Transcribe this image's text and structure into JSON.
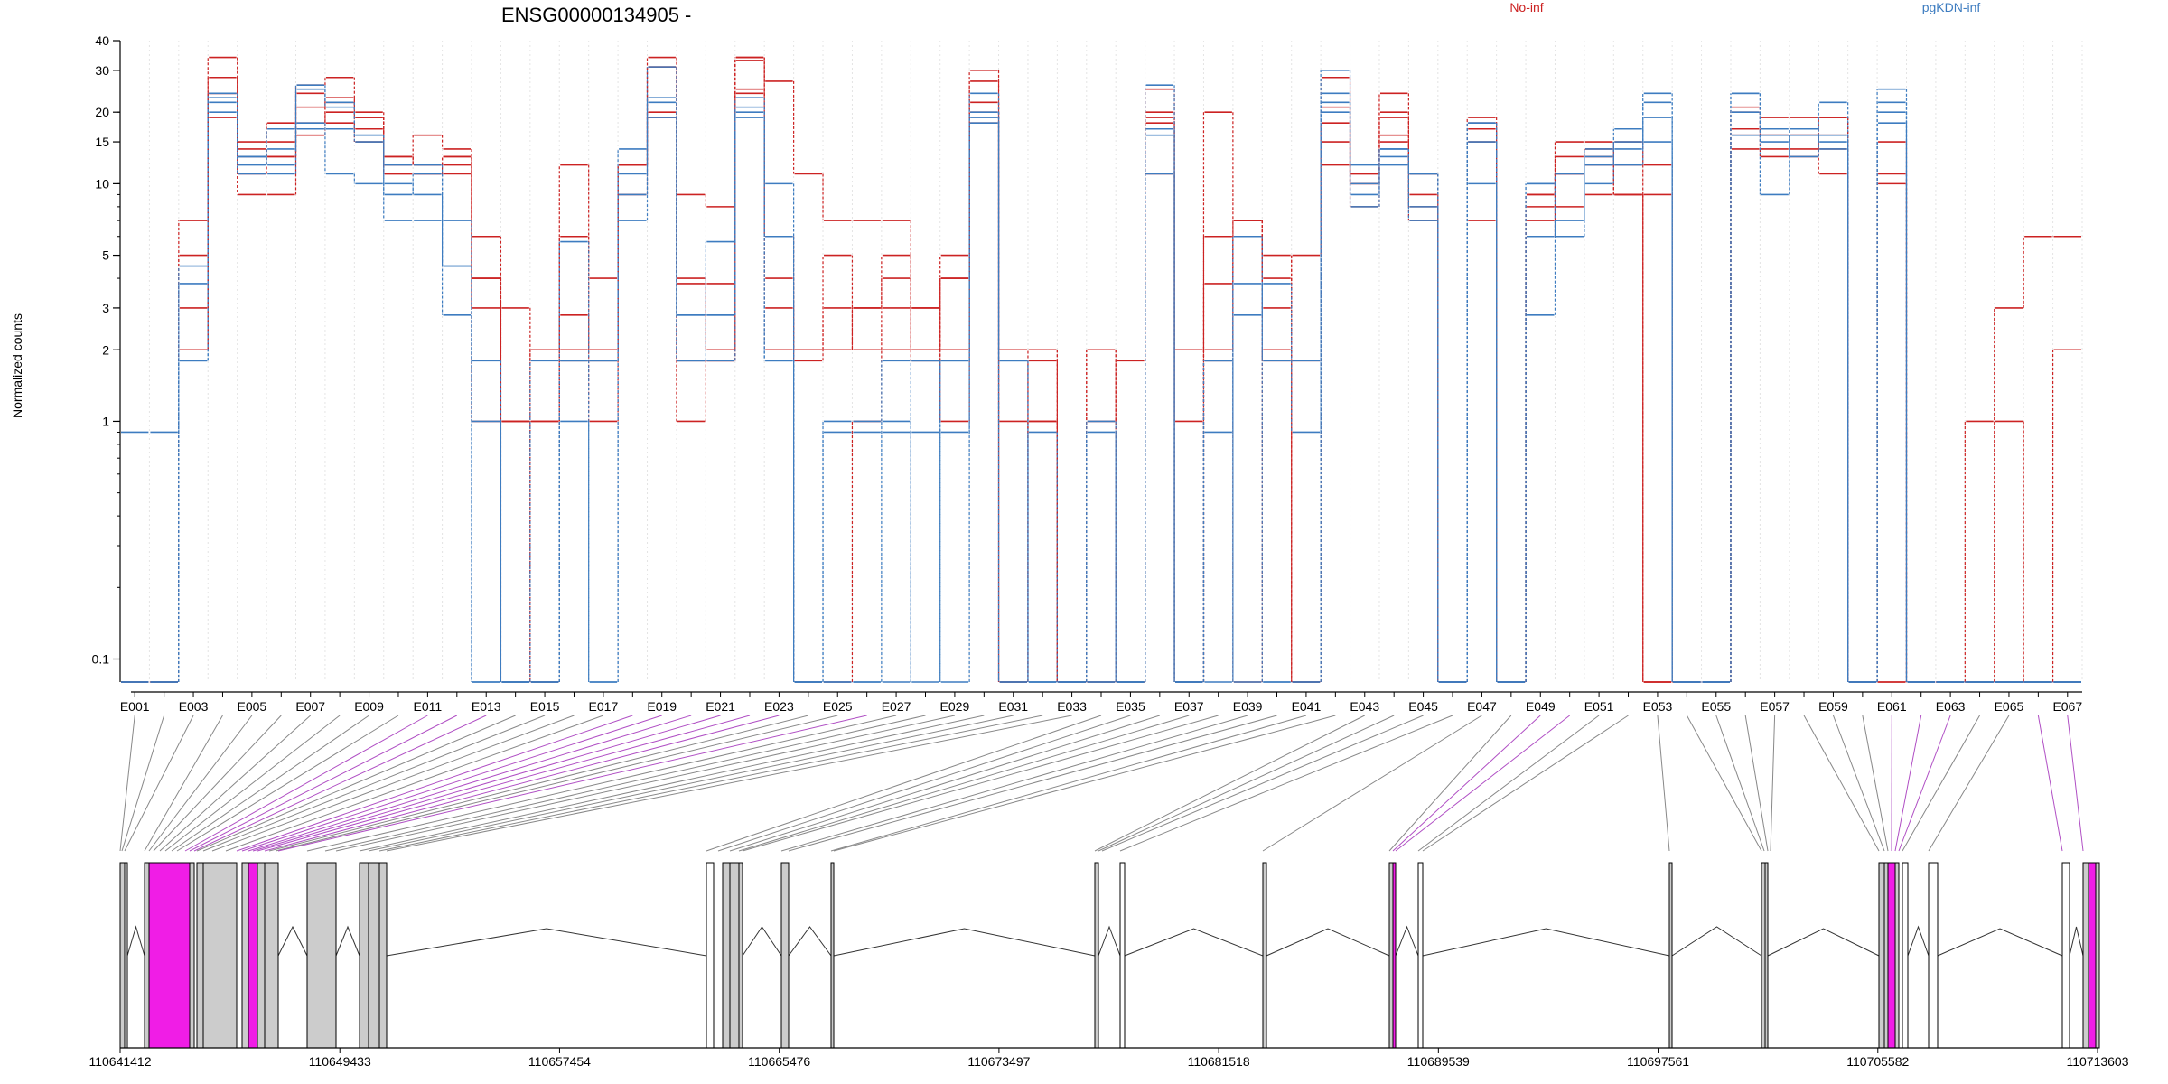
{
  "chart_data": {
    "type": "line",
    "title": "ENSG00000134905 -",
    "ylabel": "Normalized counts",
    "yscale": "log",
    "ylim": [
      0.08,
      40
    ],
    "y_ticks": [
      0.1,
      1,
      2,
      3,
      5,
      10,
      15,
      20,
      30,
      40
    ],
    "grid": "vertical dotted, one per exon",
    "legend": [
      {
        "name": "No-inf",
        "color": "#cc2222"
      },
      {
        "name": "pgKDN-inf",
        "color": "#3d7cc0"
      }
    ],
    "x_tick_labels": [
      "E001",
      "E003",
      "E005",
      "E007",
      "E009",
      "E011",
      "E013",
      "E015",
      "E017",
      "E019",
      "E021",
      "E023",
      "E025",
      "E027",
      "E029",
      "E031",
      "E033",
      "E035",
      "E037",
      "E039",
      "E041",
      "E043",
      "E045",
      "E047",
      "E049",
      "E051",
      "E053",
      "E055",
      "E057",
      "E059",
      "E061",
      "E063",
      "E065",
      "E067"
    ],
    "exon_count": 67,
    "zero_floor": 0.08,
    "series": [
      {
        "name": "No-inf",
        "color": "#cc2222",
        "values": [
          0.08,
          0.08,
          5,
          19,
          9,
          9,
          16,
          20,
          15,
          11,
          11,
          11,
          3,
          1,
          0.08,
          1.8,
          1.8,
          9,
          20,
          1.8,
          1.8,
          25,
          4,
          0.08,
          0.08,
          1,
          2,
          1.8,
          4,
          20,
          0.08,
          1.8,
          0.08,
          0.08,
          0.08,
          11,
          0.08,
          1.8,
          7,
          5,
          0.08,
          12,
          10,
          19,
          11,
          0.08,
          7,
          0.08,
          7,
          11,
          14,
          12,
          0.08,
          0.08,
          0.08,
          17,
          16,
          16,
          11,
          0.08,
          0.08,
          0.08,
          0.08,
          0.08,
          0.08,
          0.08,
          0.08
        ]
      },
      {
        "name": "No-inf",
        "color": "#cc2222",
        "values": [
          0.08,
          0.08,
          3,
          24,
          11,
          13,
          18,
          22,
          19,
          13,
          12,
          13,
          4,
          1,
          1,
          2,
          2,
          12,
          31,
          3.8,
          3.8,
          33,
          6,
          2,
          3,
          3,
          4,
          3,
          4,
          30,
          2,
          2,
          0.08,
          1,
          1.8,
          18,
          1,
          3.8,
          6,
          4,
          1.8,
          15,
          8,
          15,
          7,
          0.08,
          15,
          0.08,
          8,
          13,
          13,
          15,
          12,
          0.08,
          0.08,
          14,
          13,
          13,
          14,
          0.08,
          0.08,
          0.08,
          0.08,
          0.08,
          0.08,
          0.08,
          0.08
        ]
      },
      {
        "name": "No-inf",
        "color": "#cc2222",
        "values": [
          0.08,
          0.08,
          2,
          34,
          13,
          18,
          21,
          23,
          20,
          13,
          12,
          12,
          6,
          3,
          0.08,
          2.8,
          1,
          12,
          34,
          1,
          1.8,
          34,
          3,
          1.8,
          2,
          3,
          3,
          2,
          5,
          27,
          1,
          2,
          0.08,
          2,
          0.08,
          19,
          0.08,
          2,
          7,
          1.8,
          0.08,
          21,
          10,
          16,
          9,
          0.08,
          17,
          0.08,
          6,
          8,
          9,
          9,
          9,
          0.08,
          0.08,
          20,
          14,
          14,
          19,
          0.08,
          15,
          0.08,
          0.08,
          0.08,
          0.08,
          0.08,
          0.08
        ]
      },
      {
        "name": "No-inf",
        "color": "#cc2222",
        "values": [
          0.08,
          0.08,
          7,
          28,
          14,
          13,
          26,
          28,
          19,
          12,
          16,
          14,
          1,
          1,
          1,
          6,
          2,
          12,
          31,
          4,
          2,
          24,
          2,
          2,
          5,
          2,
          5,
          2,
          1,
          18,
          0.08,
          1,
          0.08,
          0.08,
          0.08,
          25,
          0.08,
          6,
          0.08,
          2,
          0.08,
          28,
          11,
          20,
          8,
          0.08,
          19,
          0.08,
          9,
          11,
          12,
          9,
          0.08,
          0.08,
          0.08,
          16,
          16,
          16,
          16,
          0.08,
          11,
          0.08,
          0.08,
          0.08,
          3,
          6,
          6
        ]
      },
      {
        "name": "No-inf",
        "color": "#cc2222",
        "values": [
          0.08,
          0.08,
          2,
          24,
          15,
          15,
          24,
          18,
          17,
          11,
          11,
          13,
          4,
          0.08,
          2,
          12,
          4,
          12,
          19,
          9,
          8,
          34,
          27,
          11,
          7,
          7,
          7,
          3,
          2,
          22,
          0.08,
          1,
          0.08,
          2,
          0.08,
          20,
          2,
          20,
          7,
          3,
          5,
          18,
          11,
          24,
          11,
          0.08,
          18,
          0.08,
          9,
          15,
          15,
          9,
          0.08,
          0.08,
          0.08,
          21,
          19,
          19,
          19,
          0.08,
          10,
          0.08,
          0.08,
          1,
          1,
          0.08,
          2
        ]
      },
      {
        "name": "pgKDN-inf",
        "color": "#3d7cc0",
        "values": [
          0.9,
          0.9,
          3.8,
          24,
          13,
          12,
          17,
          17,
          16,
          10,
          9,
          4.5,
          0.08,
          0.08,
          0.08,
          1.8,
          0.08,
          11,
          23,
          1.8,
          1.8,
          23,
          1.8,
          0.08,
          0.08,
          0.08,
          0.08,
          1.8,
          0.08,
          18,
          0.08,
          0.08,
          0.08,
          1,
          0.08,
          17,
          0.08,
          1.8,
          0.08,
          0.08,
          0.08,
          22,
          9,
          12,
          11,
          0.08,
          18,
          0.08,
          10,
          11,
          12,
          14,
          19,
          0.08,
          0.08,
          20,
          16,
          13,
          16,
          0.08,
          18,
          0.08,
          0.08,
          0.08,
          0.08,
          0.08,
          0.08
        ]
      },
      {
        "name": "pgKDN-inf",
        "color": "#3d7cc0",
        "values": [
          0.08,
          0.08,
          4.5,
          22,
          12,
          14,
          25,
          22,
          16,
          12,
          12,
          4.5,
          1.8,
          0.08,
          1.8,
          1.8,
          1.8,
          9,
          31,
          2.8,
          2.8,
          21,
          1.8,
          0.08,
          1,
          1,
          1.8,
          1.8,
          1.8,
          24,
          1.8,
          0.08,
          0.08,
          0.08,
          0.08,
          26,
          0.08,
          1.8,
          3.8,
          1.8,
          1.8,
          24,
          8,
          14,
          8,
          0.08,
          10,
          0.08,
          6,
          6,
          10,
          15,
          24,
          0.08,
          0.08,
          24,
          17,
          17,
          22,
          0.08,
          25,
          0.08,
          0.08,
          0.08,
          0.08,
          0.08,
          0.08
        ]
      },
      {
        "name": "pgKDN-inf",
        "color": "#3d7cc0",
        "values": [
          0.08,
          0.08,
          1.8,
          20,
          13,
          17,
          26,
          21,
          15,
          9,
          11,
          2.8,
          0.08,
          0.08,
          0.08,
          1,
          0.08,
          7,
          22,
          1.8,
          5.7,
          20,
          6,
          0.08,
          0.08,
          0.08,
          1,
          0.9,
          1.8,
          20,
          1.8,
          0.08,
          0.08,
          0.9,
          0.08,
          16,
          0.08,
          0.9,
          2.8,
          3.8,
          0.9,
          20,
          10,
          13,
          7,
          0.08,
          15,
          0.08,
          10,
          6,
          13,
          12,
          22,
          0.08,
          0.08,
          16,
          15,
          17,
          15,
          0.08,
          22,
          0.08,
          0.08,
          0.08,
          0.08,
          0.08,
          0.08
        ]
      },
      {
        "name": "pgKDN-inf",
        "color": "#3d7cc0",
        "values": [
          0.08,
          0.08,
          1.8,
          23,
          11,
          11,
          18,
          11,
          10,
          7,
          7,
          7,
          1,
          0.08,
          0.08,
          5.7,
          1.8,
          14,
          19,
          2.8,
          2.8,
          19,
          10,
          0.08,
          0.9,
          0.9,
          0.9,
          0.08,
          0.9,
          19,
          0.08,
          0.9,
          0.08,
          0.08,
          0.08,
          11,
          0.08,
          0.08,
          6,
          0.08,
          0.08,
          30,
          12,
          14,
          11,
          0.08,
          18,
          0.08,
          2.8,
          7,
          14,
          17,
          15,
          0.08,
          0.08,
          24,
          9,
          16,
          14,
          0.08,
          20,
          0.08,
          0.08,
          0.08,
          0.08,
          0.08,
          0.08
        ]
      }
    ]
  },
  "gene_model": {
    "coordinate_labels": [
      "110641412",
      "110649433",
      "110657454",
      "110665476",
      "110673497",
      "110681518",
      "110689539",
      "110697561",
      "110705582",
      "110713603"
    ],
    "colors": {
      "exon_tested": "#cccccc",
      "exon_highlight": "#f01de6",
      "exon_untested": "#ffffff",
      "connector": "#888888",
      "connector_highlight": "#b04fc4"
    }
  }
}
